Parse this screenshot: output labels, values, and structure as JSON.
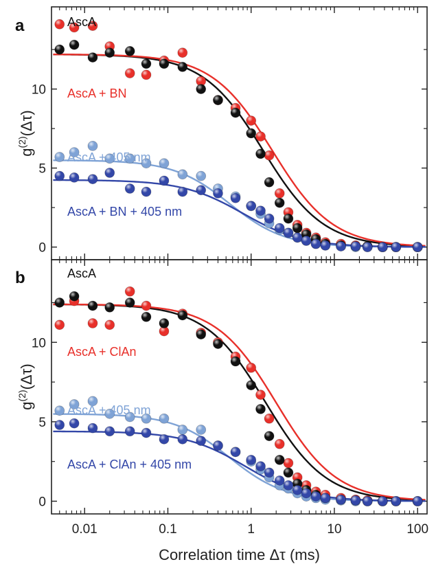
{
  "figure": {
    "xlabel": "Correlation time Δτ (ms)",
    "ylabel": "g(2)(Δτ)",
    "ylabel_main": "g",
    "ylabel_sup": "(2)",
    "ylabel_arg": "(Δτ)",
    "x_ticks": [
      "0.01",
      "0.1",
      "1",
      "10",
      "100"
    ],
    "y_ticks": [
      "0",
      "5",
      "10"
    ]
  },
  "colors": {
    "black": "#111111",
    "red": "#e8302a",
    "light_blue": "#7fa3d6",
    "dark_blue": "#3347a8"
  },
  "chart_data": [
    {
      "type": "scatter",
      "panel": "a",
      "xscale": "log",
      "xlim": [
        0.004,
        130
      ],
      "ylim": [
        -0.8,
        15.2
      ],
      "series": [
        {
          "name": "AscA",
          "color": "#111111",
          "x": [
            0.005,
            0.0075,
            0.0125,
            0.02,
            0.035,
            0.055,
            0.09,
            0.15,
            0.25,
            0.4,
            0.65,
            1.0,
            1.3,
            1.65,
            2.2,
            2.8,
            3.6,
            4.6,
            6.0,
            7.8,
            12,
            18,
            25,
            38,
            55,
            100
          ],
          "y": [
            12.5,
            12.8,
            12.0,
            12.3,
            12.4,
            11.6,
            11.6,
            11.4,
            10.0,
            9.3,
            8.5,
            7.2,
            5.9,
            4.1,
            2.8,
            1.8,
            1.2,
            0.8,
            0.5,
            0.2,
            0.1,
            0.05,
            0.05,
            0.0,
            0.0,
            0.0
          ],
          "fit": {
            "A": 12.2,
            "tau": 1.4,
            "n": 1.2
          }
        },
        {
          "name": "AscA + BN",
          "color": "#e8302a",
          "x": [
            0.005,
            0.0075,
            0.0125,
            0.02,
            0.035,
            0.055,
            0.09,
            0.15,
            0.25,
            0.4,
            0.65,
            1.0,
            1.3,
            1.65,
            2.2,
            2.8,
            3.6,
            4.6,
            6.0,
            7.8,
            12,
            18,
            25,
            38,
            55,
            100
          ],
          "y": [
            14.1,
            13.9,
            14.0,
            12.7,
            11.0,
            10.9,
            11.8,
            12.3,
            10.5,
            9.3,
            8.8,
            8.0,
            7.0,
            5.8,
            3.4,
            2.2,
            1.4,
            0.9,
            0.6,
            0.3,
            0.2,
            0.1,
            0.05,
            0.0,
            0.0,
            0.0
          ],
          "fit": {
            "A": 12.2,
            "tau": 1.8,
            "n": 1.2
          }
        },
        {
          "name": "AscA + 405 nm",
          "color": "#7fa3d6",
          "x": [
            0.005,
            0.0075,
            0.0125,
            0.02,
            0.035,
            0.055,
            0.09,
            0.15,
            0.25,
            0.4,
            0.65,
            1.0,
            1.3,
            1.65,
            2.2,
            2.8,
            3.6,
            4.6,
            6.0,
            7.8,
            12,
            18,
            25,
            38,
            55,
            100
          ],
          "y": [
            5.7,
            6.0,
            6.4,
            5.6,
            5.6,
            5.3,
            5.3,
            4.6,
            4.5,
            3.7,
            3.2,
            2.6,
            2.1,
            1.5,
            1.1,
            0.9,
            0.6,
            0.4,
            0.2,
            0.1,
            0.05,
            0.0,
            0.0,
            0.0,
            0.0,
            0.0
          ],
          "fit": {
            "A": 5.5,
            "tau": 0.55,
            "n": 1.3
          }
        },
        {
          "name": "AscA + BN + 405 nm",
          "color": "#3347a8",
          "x": [
            0.005,
            0.0075,
            0.0125,
            0.02,
            0.035,
            0.055,
            0.09,
            0.15,
            0.25,
            0.4,
            0.65,
            1.0,
            1.3,
            1.65,
            2.2,
            2.8,
            3.6,
            4.6,
            6.0,
            7.8,
            12,
            18,
            25,
            38,
            55,
            100
          ],
          "y": [
            4.5,
            4.4,
            4.3,
            4.7,
            3.7,
            3.5,
            4.2,
            3.5,
            3.6,
            3.4,
            3.1,
            2.6,
            2.3,
            1.8,
            1.2,
            0.9,
            0.6,
            0.4,
            0.2,
            0.1,
            0.05,
            0.05,
            0.0,
            0.0,
            0.0,
            0.0
          ],
          "fit": {
            "A": 4.25,
            "tau": 0.8,
            "n": 1.2
          }
        }
      ]
    },
    {
      "type": "scatter",
      "panel": "b",
      "xscale": "log",
      "xlim": [
        0.004,
        130
      ],
      "ylim": [
        -0.8,
        15.2
      ],
      "series": [
        {
          "name": "AscA",
          "color": "#111111",
          "x": [
            0.005,
            0.0075,
            0.0125,
            0.02,
            0.035,
            0.055,
            0.09,
            0.15,
            0.25,
            0.4,
            0.65,
            1.0,
            1.3,
            1.65,
            2.2,
            2.8,
            3.6,
            4.6,
            6.0,
            7.8,
            12,
            18,
            25,
            38,
            55,
            100
          ],
          "y": [
            12.5,
            12.9,
            12.3,
            12.2,
            12.5,
            11.6,
            11.2,
            11.7,
            10.5,
            9.9,
            8.8,
            7.3,
            5.8,
            4.1,
            2.6,
            1.8,
            1.1,
            0.7,
            0.4,
            0.2,
            0.1,
            0.05,
            0.0,
            0.0,
            0.0,
            0.0
          ],
          "fit": {
            "A": 12.4,
            "tau": 1.5,
            "n": 1.2
          }
        },
        {
          "name": "AscA + ClAn",
          "color": "#e8302a",
          "x": [
            0.005,
            0.0075,
            0.0125,
            0.02,
            0.035,
            0.055,
            0.09,
            0.15,
            0.25,
            0.4,
            0.65,
            1.0,
            1.3,
            1.65,
            2.2,
            2.8,
            3.6,
            4.6,
            6.0,
            7.8,
            12,
            18,
            25,
            38,
            55,
            100
          ],
          "y": [
            11.1,
            12.6,
            11.2,
            11.1,
            13.2,
            12.3,
            10.7,
            11.8,
            10.6,
            10.0,
            9.1,
            8.4,
            6.7,
            5.2,
            3.6,
            2.4,
            1.5,
            1.0,
            0.6,
            0.4,
            0.2,
            0.1,
            0.05,
            0.0,
            0.0,
            0.0
          ],
          "fit": {
            "A": 12.4,
            "tau": 2.0,
            "n": 1.2
          }
        },
        {
          "name": "AscA + 405 nm",
          "color": "#7fa3d6",
          "x": [
            0.005,
            0.0075,
            0.0125,
            0.02,
            0.035,
            0.055,
            0.09,
            0.15,
            0.25,
            0.4,
            0.65,
            1.0,
            1.3,
            1.65,
            2.2,
            2.8,
            3.6,
            4.6,
            6.0,
            7.8,
            12,
            18,
            25,
            38,
            55,
            100
          ],
          "y": [
            5.7,
            6.1,
            6.3,
            5.5,
            5.3,
            5.2,
            5.2,
            4.5,
            4.5,
            3.5,
            3.1,
            2.5,
            2.0,
            1.5,
            1.0,
            0.8,
            0.5,
            0.3,
            0.2,
            0.1,
            0.05,
            0.0,
            0.0,
            0.0,
            0.0,
            0.0
          ],
          "fit": {
            "A": 5.5,
            "tau": 0.55,
            "n": 1.3
          }
        },
        {
          "name": "AscA + ClAn + 405 nm",
          "color": "#3347a8",
          "x": [
            0.005,
            0.0075,
            0.0125,
            0.02,
            0.035,
            0.055,
            0.09,
            0.15,
            0.25,
            0.4,
            0.65,
            1.0,
            1.3,
            1.65,
            2.2,
            2.8,
            3.6,
            4.6,
            6.0,
            7.8,
            12,
            18,
            25,
            38,
            55,
            100
          ],
          "y": [
            4.8,
            4.9,
            4.6,
            4.4,
            4.4,
            4.3,
            3.9,
            3.9,
            3.8,
            3.5,
            3.1,
            2.6,
            2.2,
            1.8,
            1.3,
            1.0,
            0.7,
            0.5,
            0.3,
            0.2,
            0.1,
            0.05,
            0.0,
            0.0,
            0.0,
            0.0
          ],
          "fit": {
            "A": 4.4,
            "tau": 0.85,
            "n": 1.2
          }
        }
      ]
    }
  ]
}
